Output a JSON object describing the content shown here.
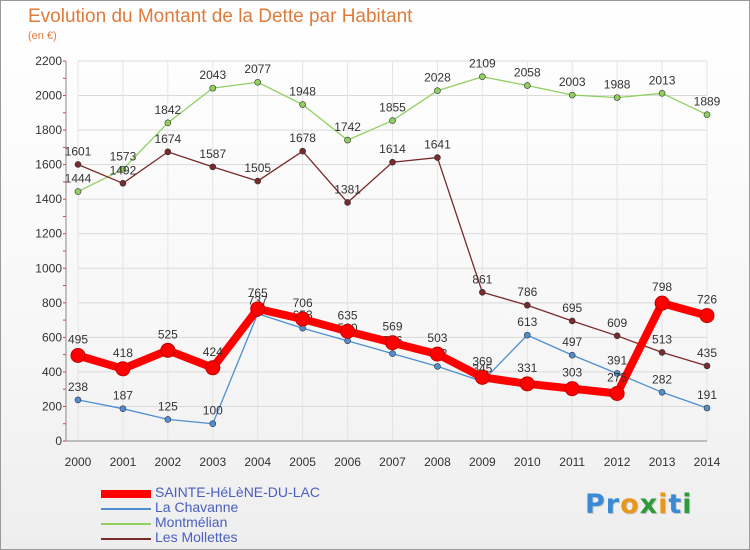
{
  "header": {
    "title": "Evolution du Montant de la Dette par Habitant",
    "subtitle": "(en €)"
  },
  "brand": {
    "logo_text": "ProXiti",
    "letters": [
      "P",
      "r",
      "o",
      "x",
      "i",
      "t",
      "i"
    ],
    "letter_colors": [
      "#3b8ad6",
      "#3b8ad6",
      "#e8961e",
      "#2e9a3a",
      "#e8961e",
      "#3b8ad6",
      "#2e9a3a"
    ]
  },
  "chart_data": {
    "type": "line",
    "title": "Evolution du Montant de la Dette par Habitant",
    "subtitle": "(en €)",
    "xlabel": "",
    "ylabel": "",
    "categories": [
      "2000",
      "2001",
      "2002",
      "2003",
      "2004",
      "2005",
      "2006",
      "2007",
      "2008",
      "2009",
      "2010",
      "2011",
      "2012",
      "2013",
      "2014"
    ],
    "ylim": [
      0,
      2200
    ],
    "yticks": [
      0,
      200,
      400,
      600,
      800,
      1000,
      1200,
      1400,
      1600,
      1800,
      2000,
      2200
    ],
    "grid": true,
    "legend_position": "bottom-left",
    "series": [
      {
        "name": "SAINTE-HéLèNE-DU-LAC",
        "color": "#ff0000",
        "values": [
          495,
          418,
          525,
          424,
          765,
          706,
          635,
          569,
          503,
          369,
          331,
          303,
          275,
          798,
          726
        ],
        "labels": [
          "495",
          "418",
          "525",
          "424",
          "765",
          "706",
          "635",
          "569",
          "503",
          "369",
          "331",
          "303",
          "275",
          "798",
          "726"
        ]
      },
      {
        "name": "La Chavanne",
        "color": "#4f8fd0",
        "values": [
          238,
          187,
          125,
          100,
          737,
          653,
          580,
          506,
          432,
          345,
          613,
          497,
          391,
          282,
          191
        ],
        "labels": [
          "238",
          "187",
          "125",
          "100",
          "737",
          "653",
          "580",
          "506",
          "432",
          "345",
          "613",
          "497",
          "391",
          "282",
          "191"
        ]
      },
      {
        "name": "Montmélian",
        "color": "#90d060",
        "values": [
          1444,
          1573,
          1842,
          2043,
          2077,
          1948,
          1742,
          1855,
          2028,
          2109,
          2058,
          2003,
          1988,
          2013,
          1889
        ],
        "labels": [
          "1444",
          "1573",
          "1842",
          "2043",
          "2077",
          "1948",
          "1742",
          "1855",
          "2028",
          "2109",
          "2058",
          "2003",
          "1988",
          "2013",
          "1889"
        ]
      },
      {
        "name": "Les Mollettes",
        "color": "#7a2a2a",
        "values": [
          1601,
          1492,
          1674,
          1587,
          1505,
          1678,
          1381,
          1614,
          1641,
          861,
          786,
          695,
          609,
          513,
          435
        ],
        "labels": [
          "1601",
          "1492",
          "1674",
          "1587",
          "1505",
          "1678",
          "1381",
          "1614",
          "1641",
          "861",
          "786",
          "695",
          "609",
          "513",
          "435"
        ]
      }
    ]
  }
}
